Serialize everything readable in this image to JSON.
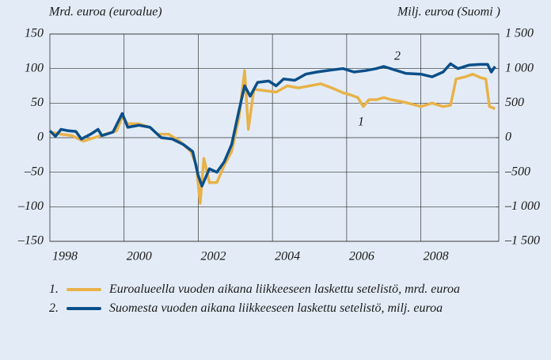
{
  "chart_data": {
    "type": "line",
    "ylabel": "Mrd. euroa (euroalue)",
    "y2label": "Milj. euroa (Suomi )",
    "xlim": [
      1998,
      2010.1
    ],
    "xticks": [
      1998,
      2000,
      2002,
      2004,
      2006,
      2008
    ],
    "ylim": [
      -150,
      150
    ],
    "yticks": [
      {
        "value": 150,
        "label": "150"
      },
      100,
      50,
      0,
      {
        "value": -50,
        "label": "–50"
      },
      {
        "value": -100,
        "label": "–100"
      },
      {
        "value": -150,
        "label": "–150"
      }
    ],
    "y2lim": [
      -1500,
      1500
    ],
    "y2ticks": [
      {
        "value": 1500,
        "label": "1 500"
      },
      {
        "value": 1000,
        "label": "1 000"
      },
      500,
      0,
      {
        "value": -500,
        "label": "–500"
      },
      {
        "value": -1000,
        "label": "–1 000"
      },
      {
        "value": -1500,
        "label": "–1 500"
      }
    ],
    "grid": true,
    "series": [
      {
        "name": "Euroalueella vuoden aikana liikkeeseen laskettu setelistö, mrd. euroa",
        "marker": "1.",
        "annotation": "1",
        "color": "#e8b24a",
        "axis": "y",
        "x": [
          1998.0,
          1998.3,
          1998.6,
          1998.9,
          1999.2,
          1999.5,
          1999.8,
          1999.95,
          2000.1,
          2000.4,
          2000.7,
          2000.9,
          2001.2,
          2001.5,
          2001.8,
          2001.95,
          2002.05,
          2002.15,
          2002.3,
          2002.5,
          2002.7,
          2002.9,
          2003.1,
          2003.25,
          2003.35,
          2003.5,
          2003.8,
          2004.1,
          2004.4,
          2004.7,
          2005.0,
          2005.3,
          2005.6,
          2005.9,
          2006.1,
          2006.3,
          2006.45,
          2006.6,
          2006.8,
          2007.0,
          2007.2,
          2007.5,
          2007.8,
          2008.0,
          2008.3,
          2008.6,
          2008.8,
          2008.95,
          2009.2,
          2009.4,
          2009.6,
          2009.75,
          2009.85,
          2010.0
        ],
        "values": [
          8,
          5,
          3,
          -5,
          0,
          5,
          10,
          30,
          20,
          20,
          15,
          5,
          5,
          -5,
          -20,
          -40,
          -95,
          -30,
          -65,
          -65,
          -40,
          -20,
          30,
          97,
          12,
          70,
          68,
          66,
          75,
          72,
          75,
          78,
          72,
          65,
          62,
          58,
          45,
          55,
          55,
          58,
          55,
          52,
          48,
          45,
          50,
          45,
          47,
          85,
          88,
          92,
          87,
          85,
          45,
          42
        ]
      },
      {
        "name": "Suomesta vuoden aikana liikkeeseen laskettu setelistö, milj. euroa",
        "marker": "2.",
        "annotation": "2",
        "color": "#0b4f8a",
        "axis": "y2",
        "x": [
          1998.0,
          1998.15,
          1998.3,
          1998.5,
          1998.7,
          1998.85,
          1999.1,
          1999.3,
          1999.4,
          1999.7,
          1999.95,
          2000.1,
          2000.4,
          2000.7,
          2001.0,
          2001.3,
          2001.6,
          2001.85,
          2002.0,
          2002.1,
          2002.3,
          2002.5,
          2002.7,
          2002.9,
          2003.1,
          2003.25,
          2003.4,
          2003.6,
          2003.9,
          2004.1,
          2004.3,
          2004.6,
          2004.9,
          2005.2,
          2005.6,
          2005.9,
          2006.2,
          2006.5,
          2006.8,
          2007.0,
          2007.3,
          2007.6,
          2008.0,
          2008.3,
          2008.6,
          2008.8,
          2009.0,
          2009.3,
          2009.6,
          2009.8,
          2009.9,
          2010.0
        ],
        "values": [
          100,
          20,
          120,
          100,
          90,
          -20,
          50,
          120,
          30,
          80,
          350,
          150,
          180,
          150,
          0,
          -20,
          -100,
          -200,
          -550,
          -700,
          -450,
          -500,
          -350,
          -100,
          400,
          750,
          600,
          800,
          820,
          750,
          850,
          830,
          920,
          950,
          980,
          1000,
          950,
          970,
          1000,
          1030,
          980,
          930,
          920,
          880,
          950,
          1070,
          1000,
          1050,
          1060,
          1060,
          950,
          1030
        ]
      }
    ]
  }
}
